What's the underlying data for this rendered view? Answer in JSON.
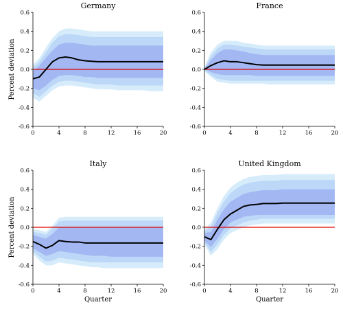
{
  "chart_data": [
    {
      "type": "line",
      "title": "Germany",
      "ylabel": "Percent deviation",
      "xlabel": "",
      "xlim": [
        0,
        20
      ],
      "ylim": [
        -0.6,
        0.6
      ],
      "xticks": [
        "0",
        "4",
        "8",
        "12",
        "16",
        "20"
      ],
      "yticks": [
        "-0.6",
        "-0.4",
        "-0.2",
        "0.0",
        "0.2",
        "0.4",
        "0.6"
      ],
      "x": [
        0,
        1,
        2,
        3,
        4,
        5,
        6,
        7,
        8,
        9,
        10,
        11,
        12,
        13,
        14,
        15,
        16,
        17,
        18,
        19,
        20
      ],
      "median": [
        -0.1,
        -0.08,
        0.0,
        0.08,
        0.12,
        0.13,
        0.12,
        0.1,
        0.09,
        0.085,
        0.08,
        0.08,
        0.08,
        0.08,
        0.08,
        0.08,
        0.08,
        0.08,
        0.08,
        0.08,
        0.08
      ],
      "band_outer": {
        "lower": [
          -0.3,
          -0.34,
          -0.28,
          -0.22,
          -0.18,
          -0.17,
          -0.17,
          -0.18,
          -0.19,
          -0.2,
          -0.21,
          -0.21,
          -0.21,
          -0.22,
          -0.22,
          -0.22,
          -0.22,
          -0.22,
          -0.23,
          -0.23,
          -0.23
        ],
        "upper": [
          0.05,
          0.12,
          0.23,
          0.33,
          0.4,
          0.43,
          0.43,
          0.42,
          0.41,
          0.4,
          0.4,
          0.4,
          0.4,
          0.4,
          0.4,
          0.4,
          0.4,
          0.4,
          0.4,
          0.4,
          0.4
        ]
      },
      "band_middle": {
        "lower": [
          -0.25,
          -0.29,
          -0.23,
          -0.17,
          -0.13,
          -0.12,
          -0.12,
          -0.13,
          -0.14,
          -0.15,
          -0.16,
          -0.16,
          -0.16,
          -0.17,
          -0.17,
          -0.17,
          -0.17,
          -0.17,
          -0.17,
          -0.17,
          -0.17
        ],
        "upper": [
          0.02,
          0.08,
          0.18,
          0.28,
          0.35,
          0.37,
          0.37,
          0.36,
          0.35,
          0.34,
          0.34,
          0.34,
          0.34,
          0.34,
          0.34,
          0.34,
          0.34,
          0.34,
          0.34,
          0.34,
          0.34
        ]
      },
      "band_inner": {
        "lower": [
          -0.2,
          -0.22,
          -0.17,
          -0.11,
          -0.07,
          -0.06,
          -0.06,
          -0.07,
          -0.08,
          -0.08,
          -0.09,
          -0.09,
          -0.09,
          -0.09,
          -0.09,
          -0.09,
          -0.09,
          -0.09,
          -0.09,
          -0.09,
          -0.09
        ],
        "upper": [
          -0.02,
          0.04,
          0.12,
          0.2,
          0.26,
          0.28,
          0.28,
          0.27,
          0.26,
          0.25,
          0.25,
          0.25,
          0.25,
          0.25,
          0.25,
          0.25,
          0.25,
          0.25,
          0.25,
          0.25,
          0.25
        ]
      },
      "zero_line": 0.0
    },
    {
      "type": "line",
      "title": "France",
      "ylabel": "",
      "xlabel": "",
      "xlim": [
        0,
        20
      ],
      "ylim": [
        -0.6,
        0.6
      ],
      "xticks": [
        "0",
        "4",
        "8",
        "12",
        "16",
        "20"
      ],
      "yticks": [
        "-0.6",
        "-0.4",
        "-0.2",
        "0.0",
        "0.2",
        "0.4",
        "0.6"
      ],
      "x": [
        0,
        1,
        2,
        3,
        4,
        5,
        6,
        7,
        8,
        9,
        10,
        11,
        12,
        13,
        14,
        15,
        16,
        17,
        18,
        19,
        20
      ],
      "median": [
        0.0,
        0.04,
        0.07,
        0.09,
        0.08,
        0.08,
        0.07,
        0.06,
        0.05,
        0.045,
        0.045,
        0.045,
        0.045,
        0.045,
        0.045,
        0.045,
        0.045,
        0.045,
        0.045,
        0.045,
        0.045
      ],
      "band_outer": {
        "lower": [
          -0.02,
          -0.08,
          -0.13,
          -0.14,
          -0.15,
          -0.15,
          -0.15,
          -0.15,
          -0.15,
          -0.15,
          -0.16,
          -0.16,
          -0.16,
          -0.16,
          -0.16,
          -0.16,
          -0.16,
          -0.16,
          -0.16,
          -0.16,
          -0.16
        ],
        "upper": [
          0.02,
          0.18,
          0.26,
          0.3,
          0.3,
          0.3,
          0.28,
          0.27,
          0.26,
          0.25,
          0.25,
          0.25,
          0.25,
          0.25,
          0.25,
          0.25,
          0.25,
          0.25,
          0.25,
          0.25,
          0.25
        ]
      },
      "band_middle": {
        "lower": [
          -0.01,
          -0.06,
          -0.1,
          -0.11,
          -0.12,
          -0.12,
          -0.12,
          -0.12,
          -0.12,
          -0.12,
          -0.12,
          -0.12,
          -0.12,
          -0.12,
          -0.12,
          -0.12,
          -0.12,
          -0.12,
          -0.12,
          -0.12,
          -0.12
        ],
        "upper": [
          0.01,
          0.14,
          0.22,
          0.26,
          0.26,
          0.25,
          0.24,
          0.23,
          0.22,
          0.21,
          0.21,
          0.21,
          0.21,
          0.21,
          0.21,
          0.21,
          0.21,
          0.21,
          0.21,
          0.21,
          0.21
        ]
      },
      "band_inner": {
        "lower": [
          0.0,
          -0.03,
          -0.05,
          -0.06,
          -0.06,
          -0.06,
          -0.06,
          -0.06,
          -0.07,
          -0.07,
          -0.07,
          -0.07,
          -0.07,
          -0.07,
          -0.07,
          -0.07,
          -0.07,
          -0.07,
          -0.07,
          -0.07,
          -0.07
        ],
        "upper": [
          0.0,
          0.1,
          0.17,
          0.21,
          0.21,
          0.2,
          0.19,
          0.17,
          0.16,
          0.15,
          0.15,
          0.15,
          0.15,
          0.15,
          0.15,
          0.15,
          0.15,
          0.15,
          0.15,
          0.15,
          0.15
        ]
      },
      "zero_line": 0.0
    },
    {
      "type": "line",
      "title": "Italy",
      "ylabel": "Percent deviation",
      "xlabel": "",
      "xlim": [
        0,
        20
      ],
      "ylim": [
        -0.6,
        0.6
      ],
      "xticks": [
        "0",
        "4",
        "8",
        "12",
        "16",
        "20"
      ],
      "yticks": [
        "-0.6",
        "-0.4",
        "-0.2",
        "0.0",
        "0.2",
        "0.4",
        "0.6"
      ],
      "x": [
        0,
        1,
        2,
        3,
        4,
        5,
        6,
        7,
        8,
        9,
        10,
        11,
        12,
        13,
        14,
        15,
        16,
        17,
        18,
        19,
        20
      ],
      "median": [
        -0.15,
        -0.18,
        -0.22,
        -0.19,
        -0.14,
        -0.15,
        -0.155,
        -0.155,
        -0.165,
        -0.165,
        -0.165,
        -0.165,
        -0.165,
        -0.165,
        -0.165,
        -0.165,
        -0.165,
        -0.165,
        -0.165,
        -0.165,
        -0.165
      ],
      "band_outer": {
        "lower": [
          -0.28,
          -0.35,
          -0.4,
          -0.4,
          -0.37,
          -0.38,
          -0.39,
          -0.4,
          -0.41,
          -0.42,
          -0.42,
          -0.43,
          -0.43,
          -0.43,
          -0.43,
          -0.43,
          -0.43,
          -0.43,
          -0.43,
          -0.43,
          -0.43
        ],
        "upper": [
          -0.02,
          -0.03,
          -0.05,
          0.02,
          0.1,
          0.11,
          0.11,
          0.11,
          0.11,
          0.11,
          0.11,
          0.11,
          0.11,
          0.11,
          0.11,
          0.11,
          0.11,
          0.11,
          0.11,
          0.11,
          0.11
        ]
      },
      "band_middle": {
        "lower": [
          -0.25,
          -0.31,
          -0.36,
          -0.35,
          -0.32,
          -0.33,
          -0.34,
          -0.35,
          -0.36,
          -0.37,
          -0.37,
          -0.37,
          -0.37,
          -0.37,
          -0.37,
          -0.37,
          -0.37,
          -0.37,
          -0.37,
          -0.37,
          -0.37
        ],
        "upper": [
          -0.05,
          -0.06,
          -0.08,
          -0.01,
          0.06,
          0.07,
          0.07,
          0.07,
          0.07,
          0.07,
          0.07,
          0.07,
          0.07,
          0.07,
          0.07,
          0.07,
          0.07,
          0.07,
          0.07,
          0.07,
          0.07
        ]
      },
      "band_inner": {
        "lower": [
          -0.22,
          -0.26,
          -0.3,
          -0.28,
          -0.25,
          -0.26,
          -0.27,
          -0.28,
          -0.29,
          -0.3,
          -0.3,
          -0.3,
          -0.31,
          -0.31,
          -0.31,
          -0.31,
          -0.31,
          -0.31,
          -0.31,
          -0.31,
          -0.31
        ],
        "upper": [
          -0.08,
          -0.1,
          -0.12,
          -0.07,
          0.0,
          0.0,
          0.0,
          0.0,
          0.0,
          0.0,
          0.0,
          0.0,
          0.0,
          0.0,
          0.0,
          0.0,
          0.0,
          0.0,
          0.0,
          0.0,
          0.0
        ]
      },
      "zero_line": 0.0
    },
    {
      "type": "line",
      "title": "United Kingdom",
      "ylabel": "",
      "xlabel": "",
      "xlim": [
        0,
        20
      ],
      "ylim": [
        -0.6,
        0.6
      ],
      "xticks": [
        "0",
        "4",
        "8",
        "12",
        "16",
        "20"
      ],
      "yticks": [
        "-0.6",
        "-0.4",
        "-0.2",
        "0.0",
        "0.2",
        "0.4",
        "0.6"
      ],
      "x": [
        0,
        1,
        2,
        3,
        4,
        5,
        6,
        7,
        8,
        9,
        10,
        11,
        12,
        13,
        14,
        15,
        16,
        17,
        18,
        19,
        20
      ],
      "median": [
        -0.1,
        -0.13,
        -0.02,
        0.08,
        0.14,
        0.18,
        0.22,
        0.235,
        0.24,
        0.25,
        0.25,
        0.25,
        0.255,
        0.255,
        0.255,
        0.255,
        0.255,
        0.255,
        0.255,
        0.255,
        0.255
      ],
      "band_outer": {
        "lower": [
          -0.18,
          -0.3,
          -0.23,
          -0.13,
          -0.06,
          -0.03,
          0.0,
          0.02,
          0.03,
          0.04,
          0.04,
          0.04,
          0.04,
          0.04,
          0.04,
          0.04,
          0.04,
          0.04,
          0.04,
          0.04,
          0.04
        ],
        "upper": [
          -0.02,
          0.05,
          0.2,
          0.33,
          0.42,
          0.47,
          0.51,
          0.53,
          0.54,
          0.55,
          0.55,
          0.55,
          0.56,
          0.56,
          0.56,
          0.56,
          0.56,
          0.56,
          0.56,
          0.56,
          0.56
        ]
      },
      "band_middle": {
        "lower": [
          -0.16,
          -0.26,
          -0.18,
          -0.08,
          -0.01,
          0.02,
          0.05,
          0.07,
          0.08,
          0.09,
          0.09,
          0.09,
          0.09,
          0.09,
          0.09,
          0.09,
          0.09,
          0.09,
          0.09,
          0.09,
          0.09
        ],
        "upper": [
          -0.04,
          0.01,
          0.15,
          0.27,
          0.36,
          0.41,
          0.45,
          0.47,
          0.48,
          0.49,
          0.49,
          0.49,
          0.5,
          0.5,
          0.5,
          0.5,
          0.5,
          0.5,
          0.5,
          0.5,
          0.5
        ]
      },
      "band_inner": {
        "lower": [
          -0.14,
          -0.21,
          -0.12,
          -0.02,
          0.05,
          0.08,
          0.11,
          0.12,
          0.13,
          0.13,
          0.13,
          0.13,
          0.13,
          0.13,
          0.13,
          0.13,
          0.13,
          0.13,
          0.13,
          0.13,
          0.13
        ],
        "upper": [
          -0.06,
          -0.05,
          0.08,
          0.19,
          0.27,
          0.31,
          0.35,
          0.37,
          0.38,
          0.39,
          0.39,
          0.39,
          0.4,
          0.4,
          0.4,
          0.4,
          0.4,
          0.4,
          0.4,
          0.4,
          0.4
        ]
      },
      "zero_line": 0.0
    }
  ],
  "xaxis_label": "Quarter",
  "colors": {
    "band_outer": "#d6ecfb",
    "band_middle": "#bcd7f7",
    "band_inner": "#a3b8f3",
    "median": "#000000",
    "zero_line": "#e00000"
  }
}
